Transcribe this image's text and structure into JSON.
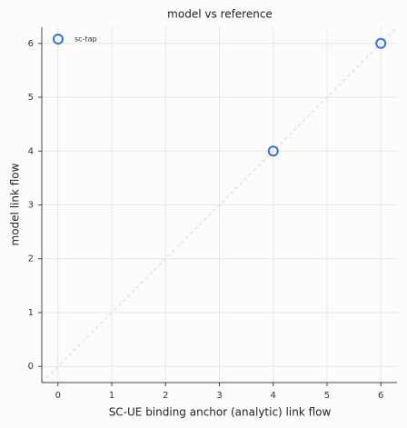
{
  "chart_data": {
    "type": "scatter",
    "title": "model vs reference",
    "xlabel": "SC-UE binding anchor (analytic) link flow",
    "ylabel": "model link flow",
    "series": [
      {
        "name": "sc-tap",
        "color": "#3474d4",
        "x": [
          4,
          6
        ],
        "values": [
          4,
          6
        ]
      }
    ],
    "xlim": [
      -0.3,
      6.3
    ],
    "ylim": [
      -0.3,
      6.3
    ],
    "xticks": [
      0,
      1,
      2,
      3,
      4,
      5,
      6
    ],
    "yticks": [
      0,
      1,
      2,
      3,
      4,
      5,
      6
    ],
    "grid": true,
    "legend": "upper-left"
  }
}
